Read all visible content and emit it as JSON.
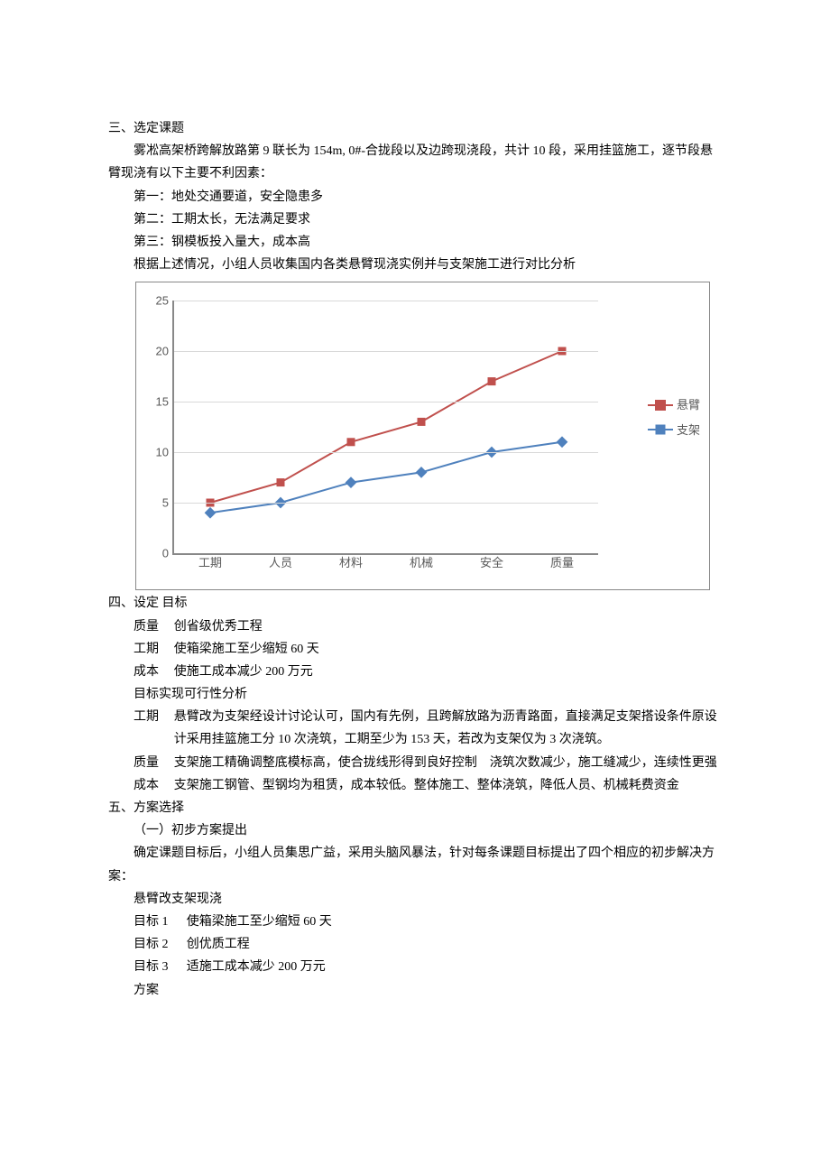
{
  "section3": {
    "title": "三、选定课题",
    "p1": "雾凇高架桥跨解放路第 9 联长为 154m, 0#-合拢段以及边跨现浇段，共计 10 段，采用挂篮施工，逐节段悬臂现浇有以下主要不利因素：",
    "l1": "第一：地处交通要道，安全隐患多",
    "l2": "第二：工期太长，无法满足要求",
    "l3": "第三：钢模板投入量大，成本高",
    "p2": "根据上述情况，小组人员收集国内各类悬臂现浇实例并与支架施工进行对比分析"
  },
  "chart": {
    "type": "line",
    "categories": [
      "工期",
      "人员",
      "材料",
      "机械",
      "安全",
      "质量"
    ],
    "series": [
      {
        "name": "悬臂",
        "color": "#c0504d",
        "marker": "square",
        "values": [
          5,
          7,
          11,
          13,
          17,
          20
        ]
      },
      {
        "name": "支架",
        "color": "#4f81bd",
        "marker": "diamond",
        "values": [
          4,
          5,
          7,
          8,
          10,
          11
        ]
      }
    ],
    "ylim": [
      0,
      25
    ],
    "ytick_step": 5,
    "line_width": 2,
    "marker_size": 8,
    "grid_color": "#d9d9d9",
    "axis_color": "#888888",
    "tick_label_color": "#595959",
    "tick_fontsize": 13,
    "background_color": "#ffffff"
  },
  "section4": {
    "title": "四、设定 目标",
    "rows1": [
      {
        "label": "质量",
        "val": "创省级优秀工程"
      },
      {
        "label": "工期",
        "val": "使箱梁施工至少缩短 60 天"
      },
      {
        "label": "成本",
        "val": "使施工成本减少 200 万元"
      }
    ],
    "feasTitle": "目标实现可行性分析",
    "rows2": [
      {
        "label": "工期",
        "val": "悬臂改为支架经设计讨论认可，国内有先例，且跨解放路为沥青路面，直接满足支架搭设条件原设计采用挂篮施工分 10 次浇筑，工期至少为 153 天，若改为支架仅为 3 次浇筑。"
      },
      {
        "label": "质量",
        "val": "支架施工精确调整底模标高，使合拢线形得到良好控制　浇筑次数减少，施工缝减少，连续性更强"
      },
      {
        "label": "成本",
        "val": "支架施工钢管、型钢均为租赁，成本较低。整体施工、整体浇筑，降低人员、机械耗费资金"
      }
    ]
  },
  "section5": {
    "title": "五、方案选择",
    "sub1": "（一）初步方案提出",
    "p1": "确定课题目标后，小组人员集思广益，采用头脑风暴法，针对每条课题目标提出了四个相应的初步解决方案：",
    "p2": "悬臂改支架现浇",
    "goals": [
      {
        "label": "目标 1",
        "val": "使箱梁施工至少缩短 60 天"
      },
      {
        "label": "目标 2",
        "val": "创优质工程"
      },
      {
        "label": "目标 3",
        "val": "适施工成本减少 200 万元"
      }
    ],
    "plan": "方案"
  }
}
